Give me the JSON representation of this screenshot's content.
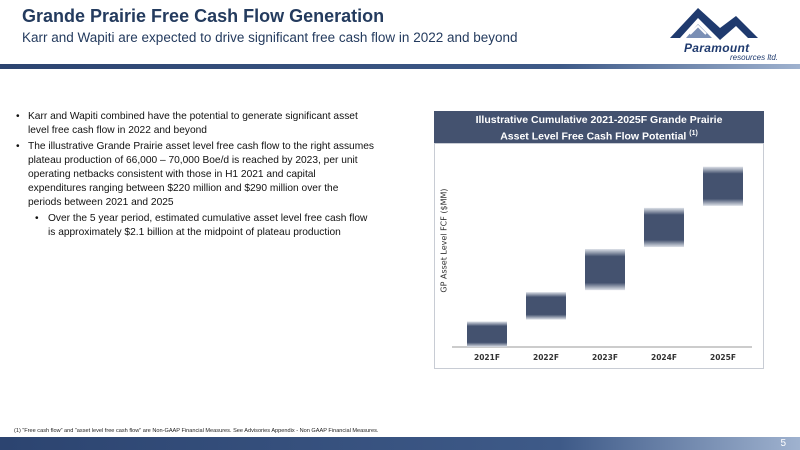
{
  "header": {
    "title": "Grande Prairie Free Cash Flow Generation",
    "subtitle": "Karr and Wapiti are expected to drive significant free cash flow in 2022 and beyond"
  },
  "logo": {
    "name": "Paramount",
    "tagline": "resources ltd."
  },
  "bullets": [
    "Karr and Wapiti combined have the potential to generate significant asset level free cash flow in 2022 and beyond",
    "The illustrative Grande Prairie asset level free cash flow to the right assumes plateau production of 66,000 – 70,000 Boe/d is reached by 2023, per unit operating netbacks consistent with those in H1 2021 and capital expenditures ranging between $220 million and $290 million over the periods between 2021 and 2025"
  ],
  "sub_bullet": "Over the 5 year period, estimated cumulative asset level free cash flow is approximately $2.1 billion at the midpoint of plateau production",
  "chart_data": {
    "type": "bar",
    "title_line1": "Illustrative Cumulative 2021-2025F Grande Prairie",
    "title_line2": "Asset Level Free Cash Flow Potential",
    "title_note": "(1)",
    "ylabel": "GP Asset Level FCF ($MM)",
    "categories": [
      "2021F",
      "2022F",
      "2023F",
      "2024F",
      "2025F"
    ],
    "series": [
      {
        "low": [
          0.0,
          0.14,
          0.29,
          0.51,
          0.72
        ],
        "high": [
          0.13,
          0.28,
          0.5,
          0.71,
          0.92
        ]
      }
    ],
    "ylim": [
      0,
      1
    ],
    "colors": {
      "bar_core": "#44526f",
      "bar_edge": "#dde1e8"
    }
  },
  "footnote": "(1)  “Free cash flow” and “asset level free cash flow” are Non-GAAP Financial Measures.  See Advisories Appendix - Non GAAP Financial Measures.",
  "page_number": "5"
}
